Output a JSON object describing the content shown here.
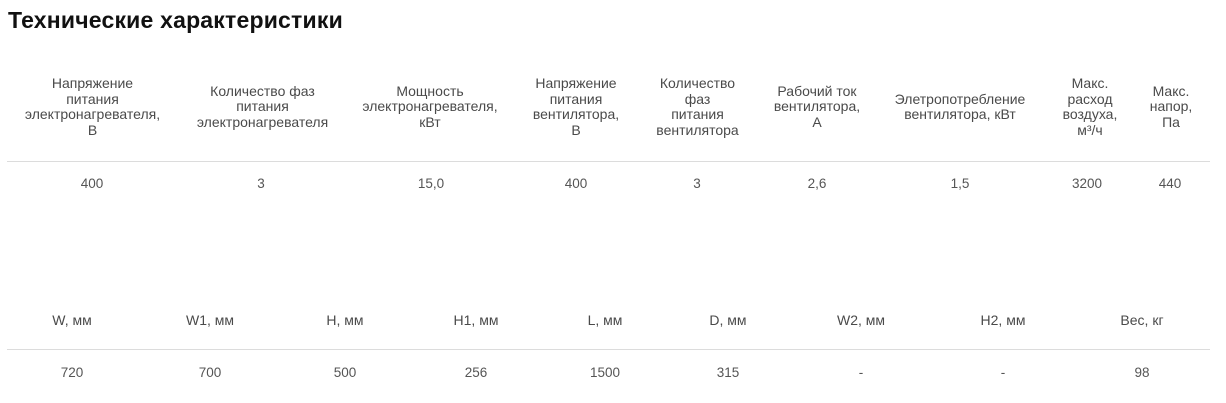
{
  "title": "Технические характеристики",
  "table1": {
    "headers": [
      "Напряжение\nпитания\nэлектронагревателя,\nВ",
      "Количество фаз\nпитания\nэлектронагревателя",
      "Мощность\nэлектронагревателя,\nкВт",
      "Напряжение\nпитания\nвентилятора,\nВ",
      "Количество\nфаз\nпитания\nвентилятора",
      "Рабочий ток\nвентилятора,\nА",
      "Элетропотребление\nвентилятора, кВт",
      "Макс.\nрасход\nвоздуха,\nм³/ч",
      "Макс.\nнапор,\nПа"
    ],
    "values": [
      "400",
      "3",
      "15,0",
      "400",
      "3",
      "2,6",
      "1,5",
      "3200",
      "440"
    ]
  },
  "table2": {
    "headers": [
      "W, мм",
      "W1, мм",
      "H, мм",
      "H1, мм",
      "L, мм",
      "D, мм",
      "W2, мм",
      "H2, мм",
      "Вес, кг"
    ],
    "values": [
      "720",
      "700",
      "500",
      "256",
      "1500",
      "315",
      "-",
      "-",
      "98"
    ]
  }
}
